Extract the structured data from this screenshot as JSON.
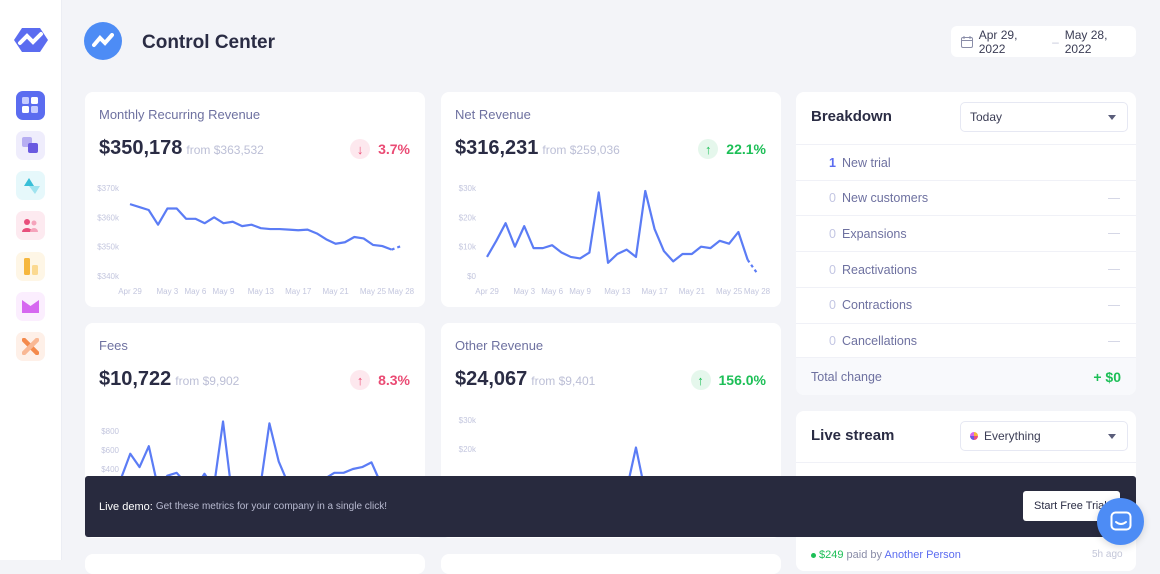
{
  "header": {
    "title": "Control Center",
    "date_start": "Apr 29, 2022",
    "date_sep": "–",
    "date_end": "May 28, 2022"
  },
  "sidebar": {
    "items": [
      {
        "icon": "dashboard-icon",
        "color": "#5b6cf0"
      },
      {
        "icon": "layers-icon",
        "color": "#6a5ae0"
      },
      {
        "icon": "shapes-icon",
        "color": "#38bfd8"
      },
      {
        "icon": "users-icon",
        "color": "#e84f7c"
      },
      {
        "icon": "bar-chart-icon",
        "color": "#f6b73c"
      },
      {
        "icon": "mail-icon",
        "color": "#d667f0"
      },
      {
        "icon": "tools-icon",
        "color": "#f48a4c"
      }
    ]
  },
  "metrics": [
    {
      "title": "Monthly Recurring Revenue",
      "value": "$350,178",
      "from": "from $363,532",
      "change": "3.7%",
      "direction": "down",
      "color": "#ea4b74"
    },
    {
      "title": "Net Revenue",
      "value": "$316,231",
      "from": "from $259,036",
      "change": "22.1%",
      "direction": "up",
      "color": "#1dbf57"
    },
    {
      "title": "Fees",
      "value": "$10,722",
      "from": "from $9,902",
      "change": "8.3%",
      "direction": "up",
      "color": "#ea4b74"
    },
    {
      "title": "Other Revenue",
      "value": "$24,067",
      "from": "from $9,401",
      "change": "156.0%",
      "direction": "up",
      "color": "#1dbf57"
    }
  ],
  "chart_data": [
    {
      "type": "line",
      "x_ticks": [
        "Apr 29",
        "May 3",
        "May 6",
        "May 9",
        "May 13",
        "May 17",
        "May 21",
        "May 25",
        "May 28"
      ],
      "y_ticks": [
        "$370k",
        "$360k",
        "$350k",
        "$340k"
      ],
      "ylim": [
        340000,
        370000
      ],
      "color": "#5b7cf5",
      "values": [
        364500,
        363500,
        362500,
        357500,
        363000,
        363000,
        359500,
        359500,
        358000,
        360000,
        358000,
        358500,
        357000,
        357500,
        356300,
        356000,
        356000,
        355800,
        355600,
        355800,
        354500,
        352500,
        351000,
        351500,
        353300,
        352800,
        350600,
        350200,
        349000,
        350200
      ]
    },
    {
      "type": "line",
      "x_ticks": [
        "Apr 29",
        "May 3",
        "May 6",
        "May 9",
        "May 13",
        "May 17",
        "May 21",
        "May 25",
        "May 28"
      ],
      "y_ticks": [
        "$30k",
        "$20k",
        "$10k",
        "$0"
      ],
      "ylim": [
        0,
        30000
      ],
      "color": "#5b7cf5",
      "values": [
        6500,
        12000,
        18000,
        10000,
        17000,
        9500,
        9500,
        10500,
        8000,
        6500,
        6000,
        8000,
        28500,
        4500,
        7500,
        9000,
        6500,
        29000,
        16000,
        8500,
        5000,
        7500,
        7500,
        10000,
        9500,
        12000,
        11000,
        15000,
        5500,
        1000
      ]
    },
    {
      "type": "line",
      "y_ticks": [
        "$800",
        "$600",
        "$400"
      ],
      "ylim": [
        0,
        800
      ],
      "color": "#5b7cf5",
      "values": [
        300,
        560,
        420,
        640,
        200,
        330,
        360,
        250,
        200,
        350,
        200,
        900,
        100,
        150,
        200,
        200,
        880,
        480,
        250,
        200,
        200,
        150,
        300,
        360,
        360,
        400,
        420,
        470,
        250,
        150
      ]
    },
    {
      "type": "line",
      "y_ticks": [
        "$30k",
        "$20k"
      ],
      "ylim": [
        0,
        30000
      ],
      "color": "#5b7cf5",
      "values": [
        6000,
        8000,
        7000,
        9000,
        6500,
        6000,
        7000,
        8000,
        6000,
        5500,
        6000,
        7000,
        6500,
        6000,
        5000,
        6000,
        20500,
        5000,
        6000,
        7000,
        6500,
        6000,
        7000,
        8000,
        7500,
        8000,
        9000,
        8000,
        6000,
        3000
      ]
    }
  ],
  "breakdown": {
    "title": "Breakdown",
    "period": "Today",
    "rows": [
      {
        "count": "1",
        "label": "New trial",
        "value": ""
      },
      {
        "count": "0",
        "label": "New customers",
        "value": "—"
      },
      {
        "count": "0",
        "label": "Expansions",
        "value": "—"
      },
      {
        "count": "0",
        "label": "Reactivations",
        "value": "—"
      },
      {
        "count": "0",
        "label": "Contractions",
        "value": "—"
      },
      {
        "count": "0",
        "label": "Cancellations",
        "value": "—"
      }
    ],
    "total_label": "Total change",
    "total_value": "+ $0"
  },
  "live_stream": {
    "title": "Live stream",
    "filter": "Everything",
    "items": [
      {
        "amount": "$249",
        "text": "paid by",
        "who": "Another Person",
        "time": "5h ago"
      }
    ]
  },
  "banner": {
    "label": "Live demo:",
    "text": "Get these metrics for your company in a single click!",
    "button": "Start Free Trial"
  }
}
